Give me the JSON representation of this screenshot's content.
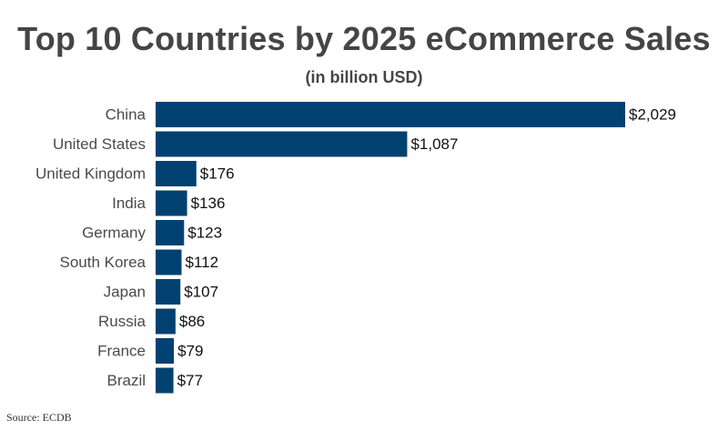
{
  "chart_data": {
    "type": "bar",
    "orientation": "horizontal",
    "title": "Top 10 Countries by 2025 eCommerce Sales",
    "subtitle": "(in billion USD)",
    "xlabel": "",
    "ylabel": "",
    "categories": [
      "China",
      "United States",
      "United Kingdom",
      "India",
      "Germany",
      "South Korea",
      "Japan",
      "Russia",
      "France",
      "Brazil"
    ],
    "values": [
      2029,
      1087,
      176,
      136,
      123,
      112,
      107,
      86,
      79,
      77
    ],
    "data_labels": [
      "$2,029",
      "$1,087",
      "$176",
      "$136",
      "$123",
      "$112",
      "$107",
      "$86",
      "$79",
      "$77"
    ],
    "xlim": [
      0,
      2029
    ],
    "grid": false,
    "legend": "none",
    "bar_color": "#004171"
  },
  "footer": {
    "source": "Source: ECDB"
  }
}
